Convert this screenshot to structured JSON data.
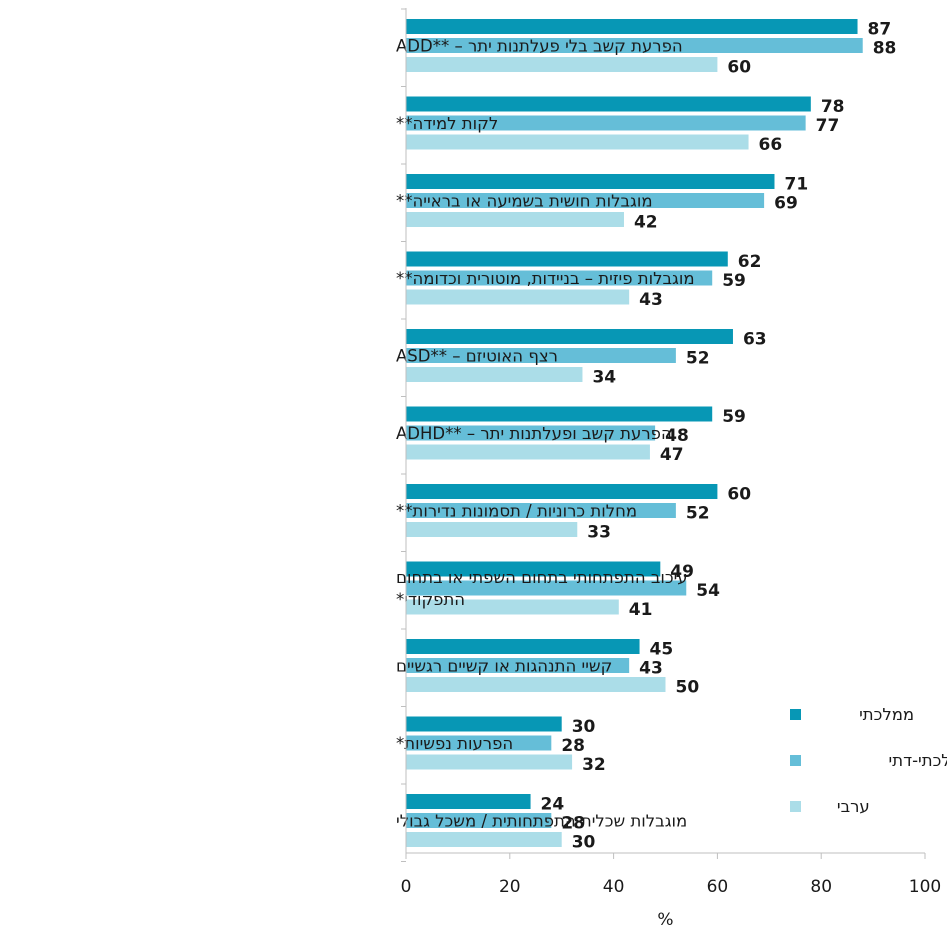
{
  "chart_data": {
    "type": "bar",
    "orientation": "horizontal",
    "xlabel": "%",
    "xlim": [
      0,
      100
    ],
    "xticks": [
      0,
      20,
      40,
      60,
      80,
      100
    ],
    "grid": false,
    "legend_position": "bottom-right",
    "categories": [
      [
        "ADD** – הפרעת קשב בלי פעלתנות יתר"
      ],
      [
        "לקות למידה**"
      ],
      [
        "מוגבלות חושית בשמיעה או בראייה**"
      ],
      [
        "מוגבלות פיזית – בניידות, מוטורית וכדומה**"
      ],
      [
        "ASD** – רצף האוטיזם"
      ],
      [
        "ADHD** – הפרעת קשב ופעלתנות יתר"
      ],
      [
        "מחלות כרוניות / תסמונות נדירות**"
      ],
      [
        "עיכוב התפתחותי בתחום השפתי או בתחום",
        "התפקודי*"
      ],
      [
        "קשיי התנהגות או קשיים רגשיים"
      ],
      [
        "הפרעות נפשיות*"
      ],
      [
        "מוגבלות שכלית התפתחותית / משכל גבולי"
      ]
    ],
    "series": [
      {
        "name": "ממלכתי",
        "color": "#0797b5",
        "values": [
          87,
          78,
          71,
          62,
          63,
          59,
          60,
          49,
          45,
          30,
          24
        ]
      },
      {
        "name": "ממלכתי-דתי",
        "color": "#65bed8",
        "values": [
          88,
          77,
          69,
          59,
          52,
          48,
          52,
          54,
          43,
          28,
          28
        ]
      },
      {
        "name": "ערבי",
        "color": "#abdde8",
        "values": [
          60,
          66,
          42,
          43,
          34,
          47,
          33,
          41,
          50,
          32,
          30
        ]
      }
    ]
  }
}
